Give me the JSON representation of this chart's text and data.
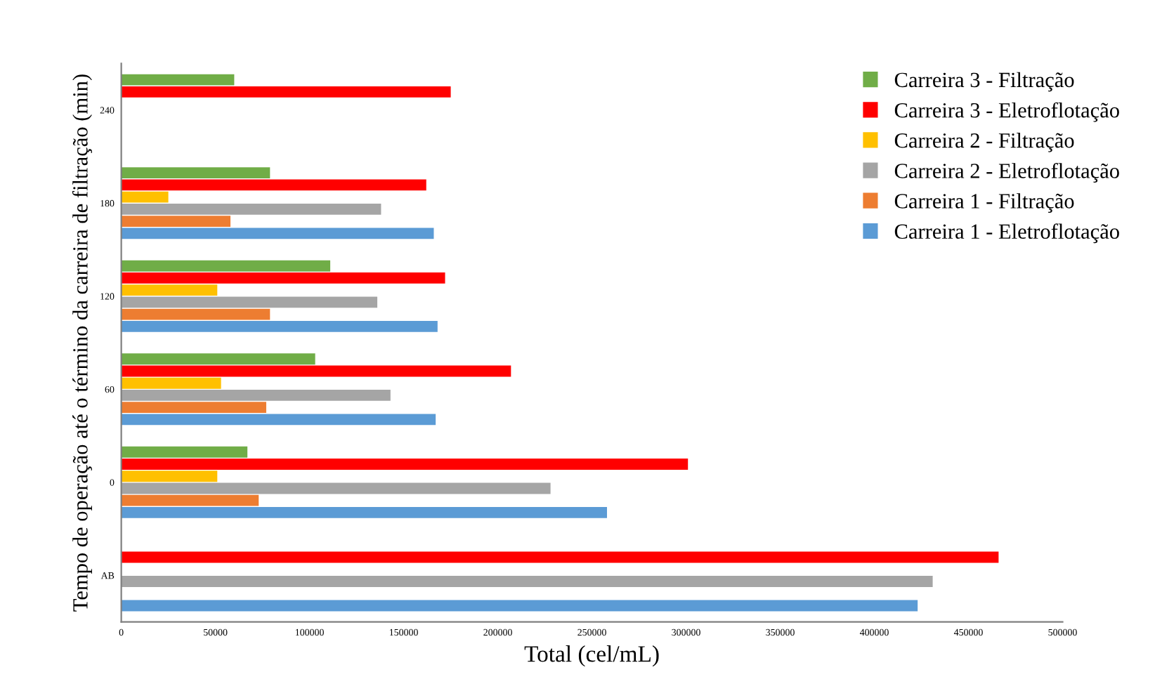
{
  "chart_data": {
    "type": "bar",
    "orientation": "horizontal",
    "xlabel": "Total (cel/mL)",
    "ylabel": "Tempo de operação até o término da carreira de filtração (min)",
    "categories": [
      "240",
      "180",
      "120",
      "60",
      "0",
      "AB"
    ],
    "series": [
      {
        "name": "Carreira 3 - Filtração",
        "color": "#70ad47",
        "values": [
          60000,
          79000,
          111000,
          103000,
          67000,
          null
        ]
      },
      {
        "name": "Carreira 3 - Eletroflotação",
        "color": "#ff0000",
        "values": [
          175000,
          162000,
          172000,
          207000,
          301000,
          466000
        ]
      },
      {
        "name": "Carreira 2 - Filtração",
        "color": "#ffc000",
        "values": [
          null,
          25000,
          51000,
          53000,
          51000,
          null
        ]
      },
      {
        "name": "Carreira 2 - Eletroflotação",
        "color": "#a5a5a5",
        "values": [
          null,
          138000,
          136000,
          143000,
          228000,
          431000
        ]
      },
      {
        "name": "Carreira 1 - Filtração",
        "color": "#ed7d31",
        "values": [
          null,
          58000,
          79000,
          77000,
          73000,
          null
        ]
      },
      {
        "name": "Carreira 1 - Eletroflotação",
        "color": "#5b9bd5",
        "values": [
          null,
          166000,
          168000,
          167000,
          258000,
          423000
        ]
      }
    ],
    "xlim": [
      0,
      500000
    ],
    "xticks": [
      0,
      50000,
      100000,
      150000,
      200000,
      250000,
      300000,
      350000,
      400000,
      450000,
      500000
    ],
    "grid": false,
    "legend": "top right"
  }
}
